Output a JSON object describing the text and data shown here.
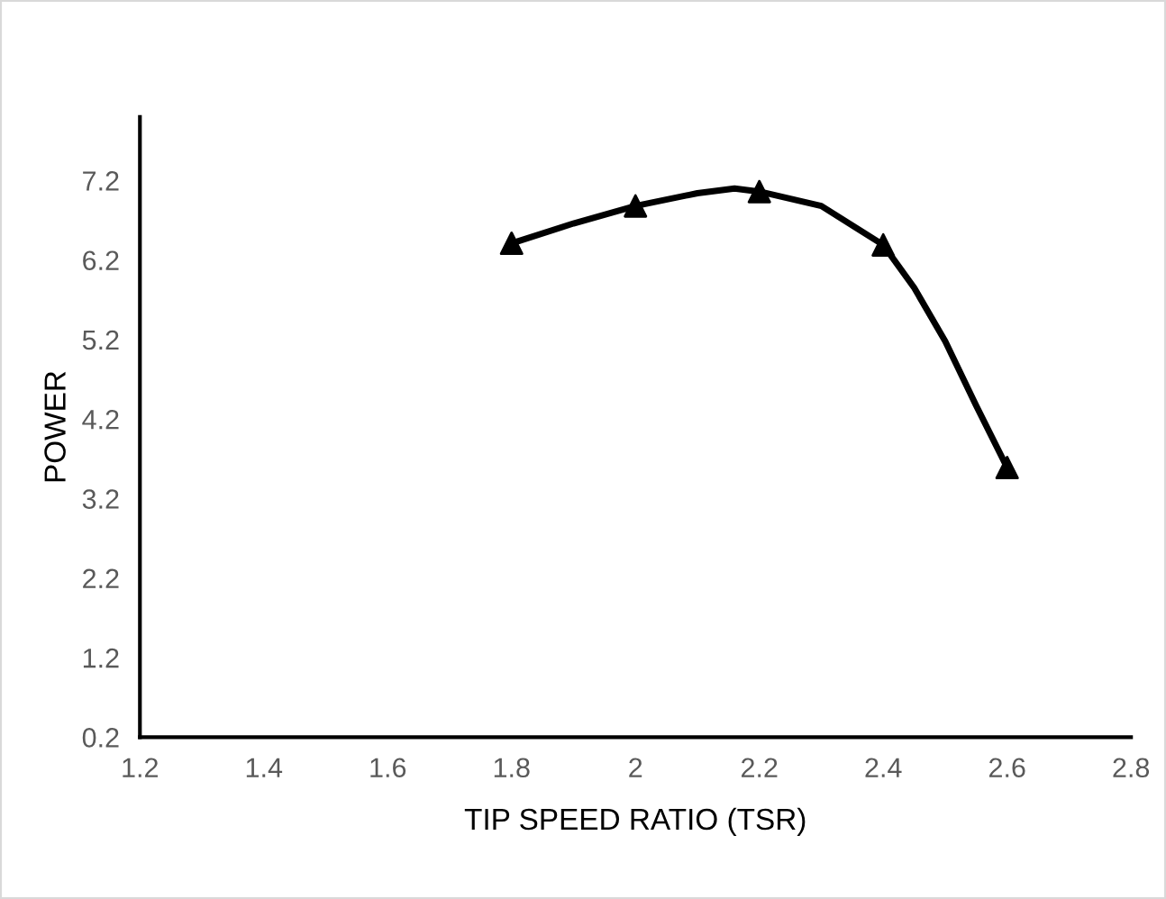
{
  "chart_data": {
    "type": "line",
    "xlabel": "TIP SPEED RATIO (TSR)",
    "ylabel": "POWER",
    "series": [
      {
        "color": "#000000",
        "marker": "none",
        "x": [
          1.8,
          1.9,
          2.0,
          2.1,
          2.16,
          2.2,
          2.3,
          2.4,
          2.45,
          2.5,
          2.55,
          2.6
        ],
        "values": [
          6.41,
          6.66,
          6.88,
          7.04,
          7.1,
          7.06,
          6.88,
          6.39,
          5.85,
          5.18,
          4.37,
          3.59
        ]
      },
      {
        "type": "scatter",
        "color": "#000000",
        "x": [
          1.8,
          2.0,
          2.2,
          2.4,
          2.6
        ],
        "values": [
          6.41,
          6.88,
          7.06,
          6.39,
          3.59
        ]
      }
    ],
    "marker": "triangle",
    "line_style": "solid",
    "grid": false,
    "legend": false,
    "xlim": [
      1.2,
      2.8
    ],
    "xticks": [
      1.2,
      1.4,
      1.6,
      1.8,
      2,
      2.2,
      2.4,
      2.6,
      2.8
    ],
    "ylim": [
      0.2,
      8.0
    ],
    "yticks": [
      0.2,
      1.2,
      2.2,
      3.2,
      4.2,
      5.2,
      6.2,
      7.2
    ]
  }
}
